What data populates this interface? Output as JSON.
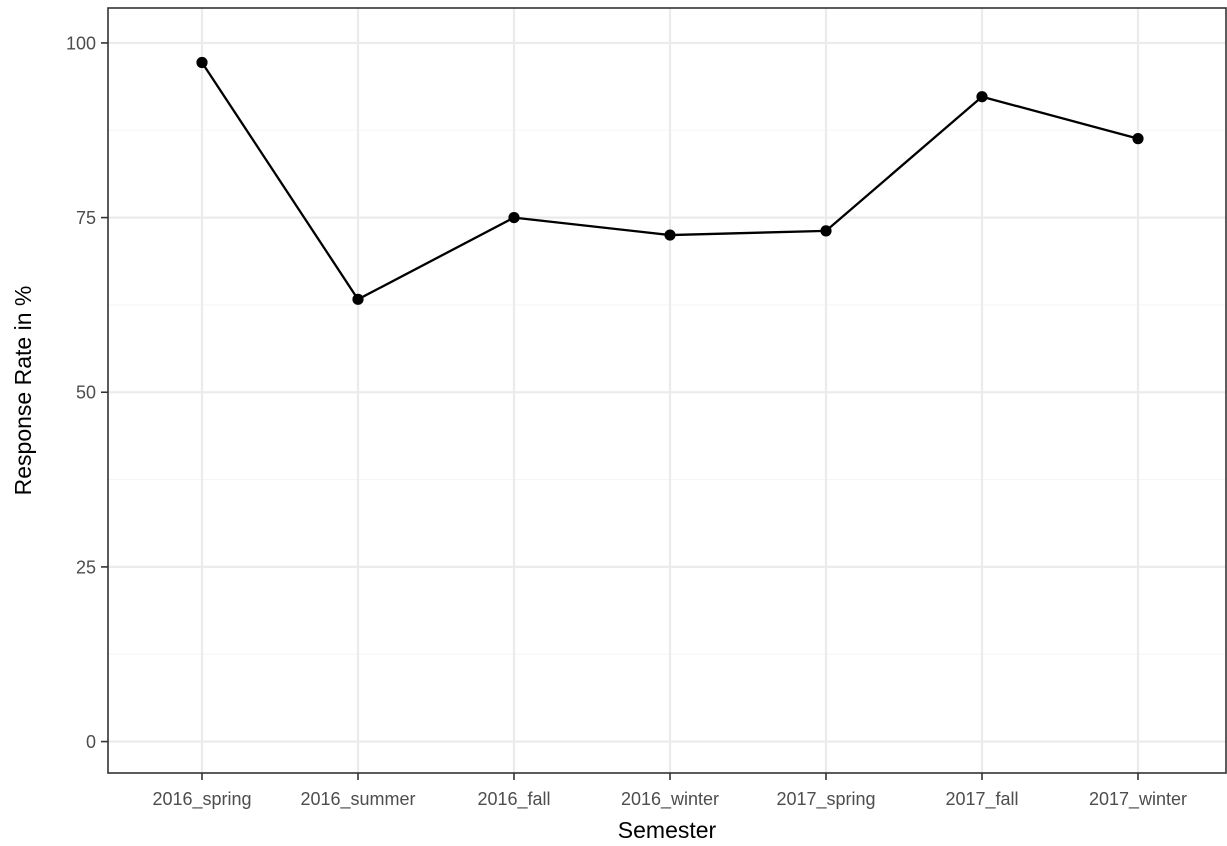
{
  "chart_data": {
    "type": "line",
    "title": "",
    "xlabel": "Semester",
    "ylabel": "Response Rate in %",
    "categories": [
      "2016_spring",
      "2016_summer",
      "2016_fall",
      "2016_winter",
      "2017_spring",
      "2017_fall",
      "2017_winter"
    ],
    "series": [
      {
        "values": [
          97.2,
          63.3,
          75.0,
          72.5,
          73.1,
          92.3,
          86.3
        ]
      }
    ],
    "ylim": [
      -4.5,
      105
    ],
    "yticks": [
      0,
      25,
      50,
      75,
      100
    ],
    "yticks_minor": [
      12.5,
      37.5,
      62.5,
      87.5
    ],
    "grid": true,
    "legend": "none",
    "colors": {
      "line": "#000000",
      "point": "#000000",
      "grid_major": "#ebebeb",
      "grid_minor": "#f5f5f5",
      "panel_border": "#333333",
      "tick_label": "#4d4d4d"
    }
  }
}
